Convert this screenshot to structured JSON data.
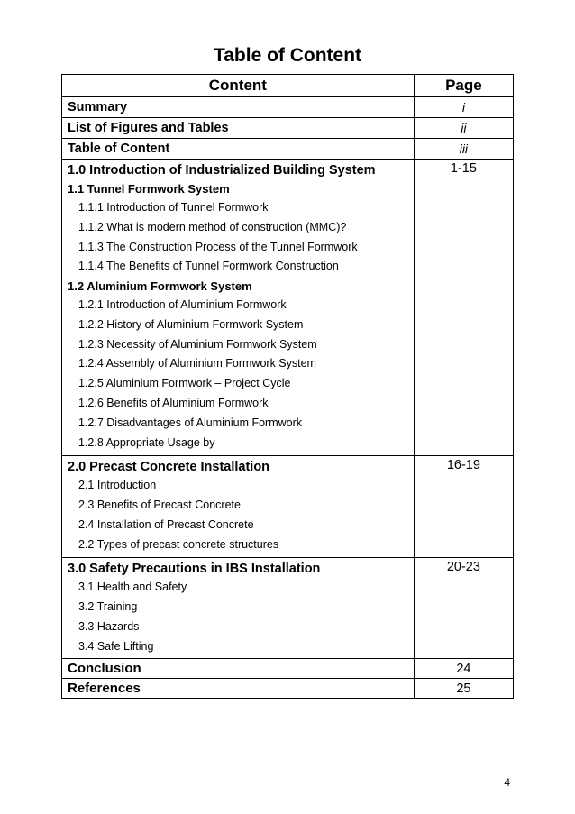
{
  "title": "Table of Content",
  "headers": {
    "content": "Content",
    "page": "Page"
  },
  "simple_rows": [
    {
      "label": "Summary",
      "page": "i"
    },
    {
      "label": "List of Figures and Tables",
      "page": "ii"
    },
    {
      "label": "Table of Content",
      "page": "iii"
    }
  ],
  "sections": [
    {
      "page": "1-15",
      "lines": [
        {
          "level": 1,
          "text": "1.0 Introduction of Industrialized Building System"
        },
        {
          "level": 2,
          "text": "1.1 Tunnel Formwork System"
        },
        {
          "level": 3,
          "text": "1.1.1 Introduction of Tunnel Formwork"
        },
        {
          "level": 3,
          "text": "1.1.2 What is modern method of construction (MMC)?"
        },
        {
          "level": 3,
          "text": "1.1.3 The Construction Process of the Tunnel Formwork"
        },
        {
          "level": 3,
          "text": "1.1.4 The Benefits of Tunnel Formwork Construction"
        },
        {
          "level": 2,
          "text": "1.2 Aluminium Formwork System"
        },
        {
          "level": 3,
          "text": "1.2.1 Introduction of Aluminium Formwork"
        },
        {
          "level": 3,
          "text": "1.2.2 History of Aluminium Formwork System"
        },
        {
          "level": 3,
          "text": "1.2.3 Necessity of Aluminium Formwork System"
        },
        {
          "level": 3,
          "text": "1.2.4 Assembly of Aluminium Formwork System"
        },
        {
          "level": 3,
          "text": "1.2.5 Aluminium Formwork – Project Cycle"
        },
        {
          "level": 3,
          "text": "1.2.6 Benefits of Aluminium Formwork"
        },
        {
          "level": 3,
          "text": "1.2.7 Disadvantages of Aluminium Formwork"
        },
        {
          "level": 3,
          "text": "1.2.8 Appropriate Usage by"
        }
      ]
    },
    {
      "page": "16-19",
      "lines": [
        {
          "level": 1,
          "text": "2.0 Precast Concrete Installation"
        },
        {
          "level": 3,
          "text": "2.1 Introduction"
        },
        {
          "level": 3,
          "text": "2.3 Benefits of Precast Concrete"
        },
        {
          "level": 3,
          "text": "2.4 Installation of Precast Concrete"
        },
        {
          "level": 3,
          "text": "2.2 Types of precast concrete structures"
        }
      ]
    },
    {
      "page": "20-23",
      "lines": [
        {
          "level": 1,
          "text": "3.0 Safety Precautions in IBS Installation"
        },
        {
          "level": 3,
          "text": "3.1 Health and Safety"
        },
        {
          "level": 3,
          "text": "3.2 Training"
        },
        {
          "level": 3,
          "text": "3.3 Hazards"
        },
        {
          "level": 3,
          "text": "3.4 Safe Lifting"
        }
      ]
    }
  ],
  "footer_rows": [
    {
      "label": "Conclusion",
      "page": "24"
    },
    {
      "label": "References",
      "page": "25"
    }
  ],
  "page_number": "4",
  "styling": {
    "title_fontsize": 21,
    "header_fontsize": 17,
    "h1_fontsize": 14.5,
    "h2_fontsize": 13,
    "h3_fontsize": 12.5,
    "border_color": "#000000",
    "background_color": "#ffffff",
    "text_color": "#000000",
    "font_family": "Arial"
  }
}
